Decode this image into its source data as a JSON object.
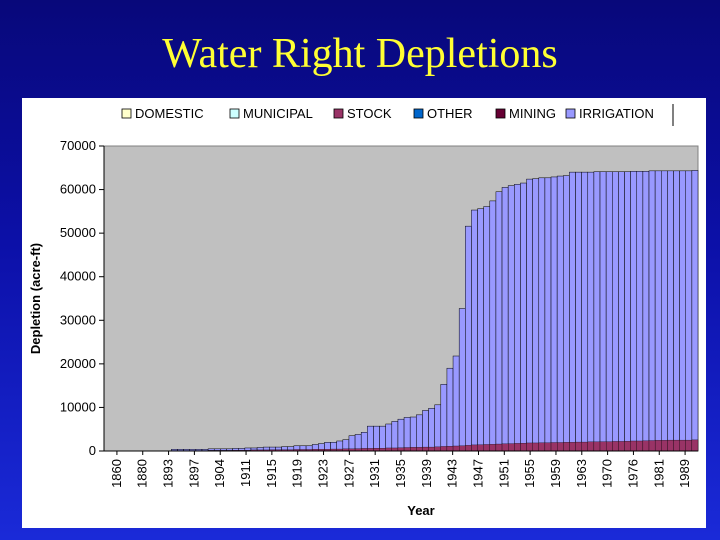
{
  "slide": {
    "title": "Water Right Depletions"
  },
  "chart_data": {
    "type": "area",
    "stacked": true,
    "title": "",
    "xlabel": "Year",
    "ylabel": "Depletion (acre-ft)",
    "ylim": [
      0,
      70000
    ],
    "yticks": [
      0,
      10000,
      20000,
      30000,
      40000,
      50000,
      60000,
      70000
    ],
    "xticks": [
      "1860",
      "1880",
      "1893",
      "1897",
      "1904",
      "1911",
      "1915",
      "1919",
      "1923",
      "1927",
      "1931",
      "1935",
      "1939",
      "1943",
      "1947",
      "1951",
      "1955",
      "1959",
      "1963",
      "1970",
      "1976",
      "1981",
      "1989"
    ],
    "legend": [
      "DOMESTIC",
      "MUNICIPAL",
      "STOCK",
      "OTHER",
      "MINING",
      "IRRIGATION"
    ],
    "colors": {
      "DOMESTIC": "#ffffcc",
      "MUNICIPAL": "#ccffff",
      "STOCK": "#993366",
      "OTHER": "#0066cc",
      "MINING": "#660033",
      "IRRIGATION": "#9999ff",
      "plot_bg": "#c0c0c0"
    },
    "totals": [
      0,
      0,
      0,
      0,
      0,
      0,
      0,
      0,
      0,
      0,
      0,
      400,
      400,
      400,
      400,
      400,
      400,
      500,
      500,
      500,
      500,
      600,
      600,
      700,
      700,
      800,
      900,
      900,
      900,
      1000,
      1000,
      1200,
      1200,
      1200,
      1500,
      1700,
      2000,
      2000,
      2300,
      2600,
      3500,
      3800,
      4300,
      5700,
      5700,
      5700,
      6200,
      6800,
      7300,
      7700,
      7800,
      8300,
      9300,
      9800,
      10600,
      15300,
      19000,
      21800,
      32700,
      51600,
      55300,
      55600,
      56100,
      57400,
      59500,
      60500,
      60900,
      61200,
      61500,
      62400,
      62500,
      62700,
      62700,
      62900,
      63100,
      63200,
      64000,
      64000,
      64000,
      64000,
      64100,
      64100,
      64100,
      64100,
      64100,
      64100,
      64200,
      64200,
      64200,
      64300,
      64300,
      64300,
      64300,
      64300,
      64300,
      64300,
      64400
    ],
    "stock": [
      0,
      0,
      0,
      0,
      0,
      0,
      0,
      0,
      0,
      0,
      0,
      100,
      100,
      100,
      100,
      100,
      100,
      150,
      150,
      150,
      150,
      200,
      200,
      200,
      250,
      250,
      250,
      300,
      300,
      300,
      300,
      350,
      350,
      350,
      400,
      400,
      400,
      450,
      450,
      500,
      500,
      550,
      600,
      600,
      650,
      650,
      700,
      700,
      750,
      800,
      850,
      850,
      900,
      900,
      950,
      1050,
      1100,
      1150,
      1200,
      1300,
      1400,
      1450,
      1500,
      1550,
      1600,
      1650,
      1700,
      1750,
      1800,
      1850,
      1850,
      1900,
      1900,
      1950,
      1950,
      2000,
      2000,
      2050,
      2050,
      2100,
      2100,
      2150,
      2150,
      2200,
      2200,
      2250,
      2300,
      2300,
      2350,
      2400,
      2450,
      2450,
      2500,
      2500,
      2500,
      2500,
      2550
    ]
  }
}
